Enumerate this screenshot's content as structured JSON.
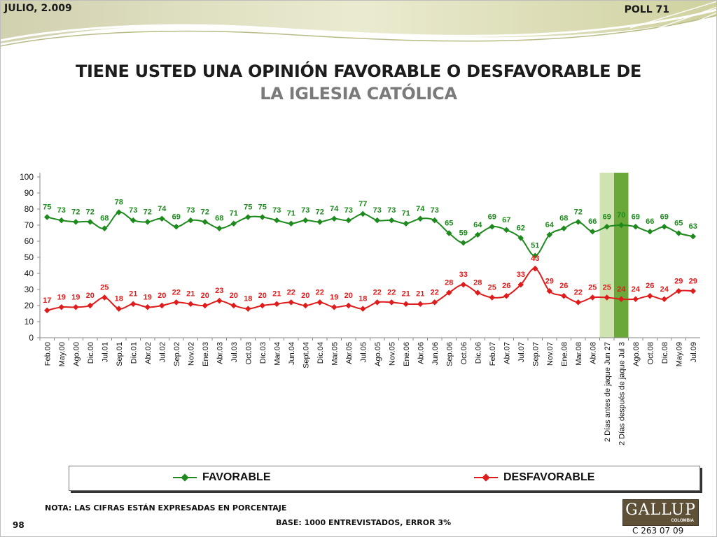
{
  "header": {
    "date": "JULIO, 2.009",
    "poll": "POLL 71"
  },
  "title_line1": "TIENE USTED UNA OPINIÓN FAVORABLE O DESFAVORABLE DE",
  "title_line2": "LA IGLESIA CATÓLICA",
  "footer": {
    "note": "NOTA: LAS CIFRAS ESTÁN EXPRESADAS EN PORCENTAJE",
    "base": "BASE: 1000 ENTREVISTADOS, ERROR 3%",
    "page": "98",
    "code": "C 263 07 09",
    "logo": "GALLUP",
    "logo_sub": "COLOMBIA"
  },
  "colors": {
    "favorable": "#1e8a1e",
    "desfavorable": "#e01b1b",
    "highlight_light": "#cfe3b0",
    "highlight_dark": "#6aa83a"
  },
  "chart_data": {
    "type": "line",
    "categories": [
      "Feb.00",
      "May.00",
      "Ago.00",
      "Dic.00",
      "Jul.01",
      "Sep.01",
      "Dic.01",
      "Abr.02",
      "Jul.02",
      "Sep.02",
      "Nov.02",
      "Ene.03",
      "Abr.03",
      "Jul.03",
      "Oct.03",
      "Dic.03",
      "Mar.04",
      "Jun.04",
      "Sept.04",
      "Dic.04",
      "Mar.05",
      "Abr.05",
      "Jul.05",
      "Ago.05",
      "Nov.05",
      "Ene.06",
      "Abr.06",
      "Jun.06",
      "Sep.06",
      "Oct.06",
      "Dic.06",
      "Feb.07",
      "Abr.07",
      "Jul.07",
      "Sep.07",
      "Nov.07",
      "Ene.08",
      "Mar.08",
      "Abr.08",
      "2 Días antes de jaque Jun 27",
      "2 Días después de jaque Jul 3",
      "Ago.08",
      "Oct.08",
      "Dic.08",
      "May.09",
      "Jul.09"
    ],
    "series": [
      {
        "name": "FAVORABLE",
        "values": [
          75,
          73,
          72,
          72,
          68,
          78,
          73,
          72,
          74,
          69,
          73,
          72,
          68,
          71,
          75,
          75,
          73,
          71,
          73,
          72,
          74,
          73,
          77,
          73,
          73,
          71,
          74,
          73,
          65,
          59,
          64,
          69,
          67,
          62,
          51,
          64,
          68,
          72,
          66,
          69,
          70,
          69,
          66,
          69,
          65,
          63
        ]
      },
      {
        "name": "DESFAVORABLE",
        "values": [
          17,
          19,
          19,
          20,
          25,
          18,
          21,
          19,
          20,
          22,
          21,
          20,
          23,
          20,
          18,
          20,
          21,
          22,
          20,
          22,
          19,
          20,
          18,
          22,
          22,
          21,
          21,
          22,
          28,
          33,
          28,
          25,
          26,
          33,
          43,
          29,
          26,
          22,
          25,
          25,
          24,
          24,
          26,
          24,
          29,
          29
        ]
      }
    ],
    "ylim": [
      0,
      100
    ],
    "yticks": [
      0,
      10,
      20,
      30,
      40,
      50,
      60,
      70,
      80,
      90,
      100
    ],
    "highlight": [
      {
        "category": "2 Días antes de jaque Jun 27",
        "shade": "light"
      },
      {
        "category": "2 Días después de jaque Jul 3",
        "shade": "dark"
      }
    ],
    "legend_position": "bottom",
    "grid": false
  }
}
